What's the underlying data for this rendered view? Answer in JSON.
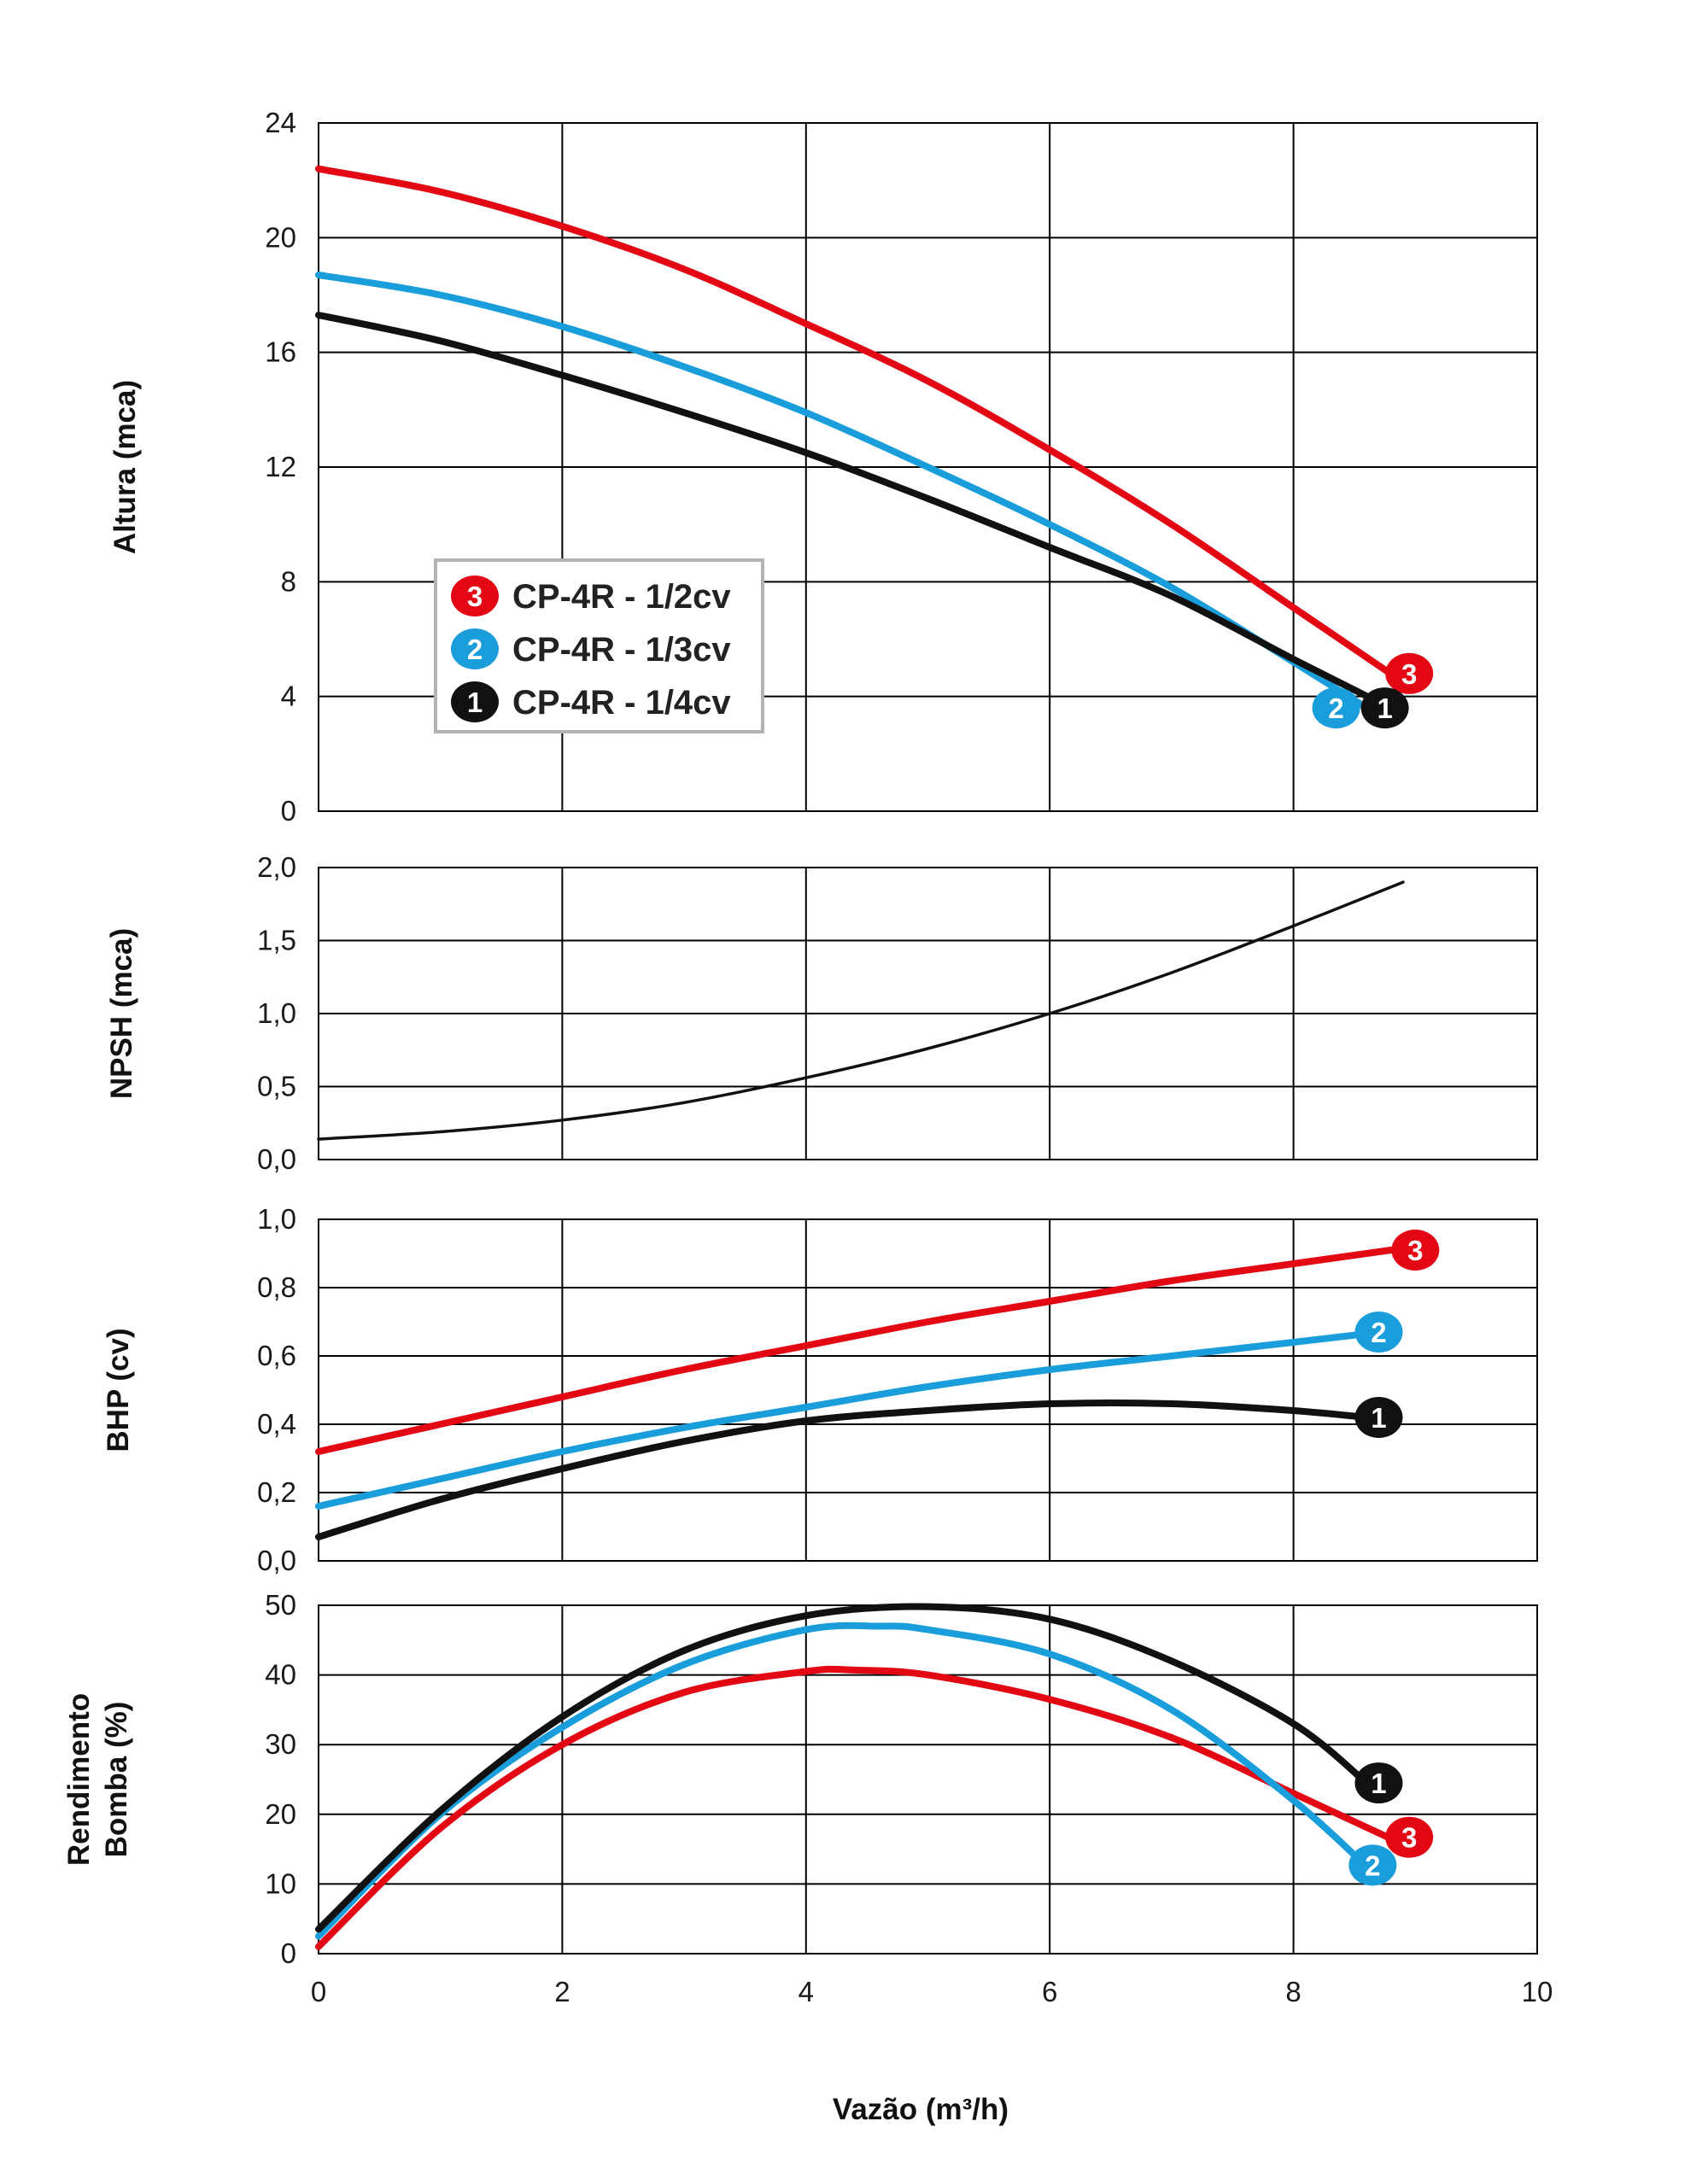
{
  "colors": {
    "curve_3": "#e30613",
    "curve_2": "#1a9edb",
    "curve_1": "#111111",
    "grid": "#000000",
    "legend_border": "#b3b3b3"
  },
  "legend": [
    {
      "badge": "3",
      "label": "CP-4R - 1/2cv",
      "color": "#e30613"
    },
    {
      "badge": "2",
      "label": "CP-4R - 1/3cv",
      "color": "#1a9edb"
    },
    {
      "badge": "1",
      "label": "CP-4R - 1/4cv",
      "color": "#111111"
    }
  ],
  "xlabel": "Vazão (m³/h)",
  "chart_data": [
    {
      "type": "line",
      "ylabel": "Altura (mca)",
      "xlim": [
        0,
        10
      ],
      "ylim": [
        0,
        24
      ],
      "xticks": [
        0,
        2,
        4,
        6,
        8,
        10
      ],
      "yticks": [
        0,
        4,
        8,
        12,
        16,
        20,
        24
      ],
      "ytick_labels": [
        "0",
        "4",
        "8",
        "12",
        "16",
        "20",
        "24"
      ],
      "grid": true,
      "legend": "inset",
      "series": [
        {
          "badge": "3",
          "color": "#e30613",
          "x": [
            0,
            1,
            2,
            3,
            4,
            5,
            6,
            7,
            8,
            8.9
          ],
          "y": [
            22.4,
            21.6,
            20.4,
            18.9,
            17.0,
            15.0,
            12.6,
            10.0,
            7.1,
            4.5
          ],
          "badge_at": [
            8.95,
            4.8
          ]
        },
        {
          "badge": "2",
          "color": "#1a9edb",
          "x": [
            0,
            1,
            2,
            3,
            4,
            5,
            6,
            7,
            8,
            8.6
          ],
          "y": [
            18.7,
            18.0,
            16.9,
            15.5,
            13.9,
            12.0,
            10.0,
            7.8,
            5.2,
            3.6
          ],
          "badge_at": [
            8.35,
            3.6
          ]
        },
        {
          "badge": "1",
          "color": "#111111",
          "x": [
            0,
            1,
            2,
            3,
            4,
            5,
            6,
            7,
            8,
            8.7
          ],
          "y": [
            17.3,
            16.4,
            15.2,
            13.9,
            12.5,
            10.9,
            9.2,
            7.5,
            5.3,
            3.8
          ],
          "badge_at": [
            8.75,
            3.6
          ]
        }
      ]
    },
    {
      "type": "line",
      "ylabel": "NPSH (mca)",
      "xlim": [
        0,
        10
      ],
      "ylim": [
        0,
        2
      ],
      "xticks": [
        0,
        2,
        4,
        6,
        8,
        10
      ],
      "yticks": [
        0,
        0.5,
        1,
        1.5,
        2
      ],
      "ytick_labels": [
        "0,0",
        "0,5",
        "1,0",
        "1,5",
        "2,0"
      ],
      "grid": true,
      "series": [
        {
          "color": "#111111",
          "thin": true,
          "x": [
            0,
            1,
            2,
            3,
            4,
            5,
            6,
            7,
            8,
            8.9
          ],
          "y": [
            0.14,
            0.19,
            0.27,
            0.39,
            0.56,
            0.76,
            1.0,
            1.28,
            1.6,
            1.9
          ]
        }
      ]
    },
    {
      "type": "line",
      "ylabel": "BHP (cv)",
      "xlim": [
        0,
        10
      ],
      "ylim": [
        0,
        1
      ],
      "xticks": [
        0,
        2,
        4,
        6,
        8,
        10
      ],
      "yticks": [
        0,
        0.2,
        0.4,
        0.6,
        0.8,
        1
      ],
      "ytick_labels": [
        "0,0",
        "0,2",
        "0,4",
        "0,6",
        "0,8",
        "1,0"
      ],
      "grid": true,
      "series": [
        {
          "badge": "3",
          "color": "#e30613",
          "x": [
            0,
            1,
            2,
            3,
            4,
            5,
            6,
            7,
            8,
            8.8
          ],
          "y": [
            0.32,
            0.4,
            0.48,
            0.56,
            0.63,
            0.7,
            0.76,
            0.82,
            0.87,
            0.91
          ],
          "badge_at": [
            9.0,
            0.91
          ]
        },
        {
          "badge": "2",
          "color": "#1a9edb",
          "x": [
            0,
            1,
            2,
            3,
            4,
            5,
            6,
            7,
            8,
            8.6
          ],
          "y": [
            0.16,
            0.24,
            0.32,
            0.39,
            0.45,
            0.51,
            0.56,
            0.6,
            0.64,
            0.665
          ],
          "badge_at": [
            8.7,
            0.67
          ]
        },
        {
          "badge": "1",
          "color": "#111111",
          "x": [
            0,
            1,
            2,
            3,
            4,
            5,
            6,
            7,
            8,
            8.6
          ],
          "y": [
            0.07,
            0.18,
            0.27,
            0.35,
            0.41,
            0.44,
            0.46,
            0.46,
            0.44,
            0.42
          ],
          "badge_at": [
            8.7,
            0.42
          ]
        }
      ]
    },
    {
      "type": "line",
      "ylabel": "Rendimento Bomba (%)",
      "ylabel_lines": [
        "Rendimento",
        "Bomba (%)"
      ],
      "xlim": [
        0,
        10
      ],
      "ylim": [
        0,
        50
      ],
      "xticks": [
        0,
        2,
        4,
        6,
        8,
        10
      ],
      "xtick_labels": [
        "0",
        "2",
        "4",
        "6",
        "8",
        "10"
      ],
      "yticks": [
        0,
        10,
        20,
        30,
        40,
        50
      ],
      "ytick_labels": [
        "0",
        "10",
        "20",
        "30",
        "40",
        "50"
      ],
      "grid": true,
      "series": [
        {
          "badge": "3",
          "color": "#e30613",
          "x": [
            0,
            1,
            2,
            3,
            4,
            4.4,
            5,
            6,
            7,
            8,
            8.8
          ],
          "y": [
            1,
            18,
            30,
            37.5,
            40.5,
            40.7,
            40,
            36.5,
            31,
            23,
            16.5
          ],
          "badge_at": [
            8.95,
            16.7
          ]
        },
        {
          "badge": "2",
          "color": "#1a9edb",
          "x": [
            0,
            1,
            2,
            3,
            4,
            4.6,
            5,
            6,
            7,
            8,
            8.6
          ],
          "y": [
            2.5,
            20,
            32.5,
            41.5,
            46.5,
            47,
            46.5,
            43,
            35,
            22,
            12.5
          ],
          "badge_at": [
            8.65,
            12.7
          ]
        },
        {
          "badge": "1",
          "color": "#111111",
          "x": [
            0,
            1,
            2,
            3,
            4,
            5,
            6,
            7,
            8,
            8.6
          ],
          "y": [
            3.5,
            20.5,
            34,
            43.5,
            48.5,
            49.8,
            48,
            42,
            33,
            24.5
          ],
          "badge_at": [
            8.7,
            24.5
          ]
        }
      ]
    }
  ]
}
